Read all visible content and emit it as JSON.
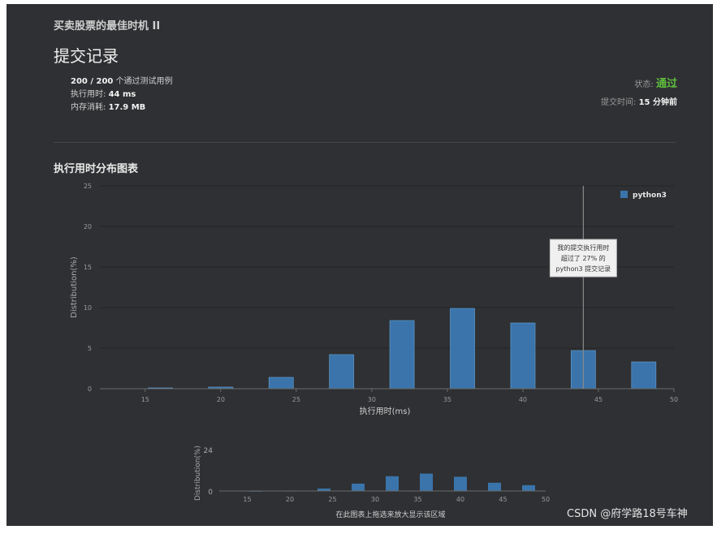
{
  "header": {
    "problem_title": "买卖股票的最佳时机 II",
    "section_title": "提交记录"
  },
  "stats": {
    "tests": "200 / 200",
    "tests_suffix": "个通过测试用例",
    "runtime_label": "执行用时:",
    "runtime_value": "44 ms",
    "memory_label": "内存消耗:",
    "memory_value": "17.9 MB"
  },
  "status": {
    "label": "状态:",
    "value": "通过",
    "submit_label": "提交时间:",
    "submit_value": "15 分钟前"
  },
  "chart_title": "执行用时分布图表",
  "chart_data": {
    "type": "bar",
    "series": [
      {
        "name": "python3",
        "x": [
          16,
          20,
          24,
          28,
          32,
          36,
          40,
          44,
          48
        ],
        "values": [
          0.1,
          0.2,
          1.4,
          4.2,
          8.4,
          9.9,
          8.1,
          4.7,
          3.3
        ]
      }
    ],
    "xlabel": "执行用时(ms)",
    "ylabel": "Distribution(%)",
    "xticks": [
      15,
      20,
      25,
      30,
      35,
      40,
      45,
      50
    ],
    "yticks": [
      0,
      5,
      10,
      15,
      20,
      25
    ],
    "xlim": [
      12,
      50
    ],
    "ylim": [
      0,
      25
    ],
    "legend_position": "top-right",
    "marker_x": 44,
    "annotation_lines": [
      "我的提交执行用时",
      "超过了 27% 的",
      "python3 提交记录"
    ],
    "color": "#3a74aa"
  },
  "navigator": {
    "ylabel": "Distribution(%)",
    "ytick_top": "24",
    "ytick_bottom": "0",
    "xticks": [
      15,
      20,
      25,
      30,
      35,
      40,
      45,
      50
    ],
    "ymax": 24,
    "hint": "在此图表上拖选来放大显示该区域"
  },
  "watermark": "CSDN @府学路18号车神"
}
